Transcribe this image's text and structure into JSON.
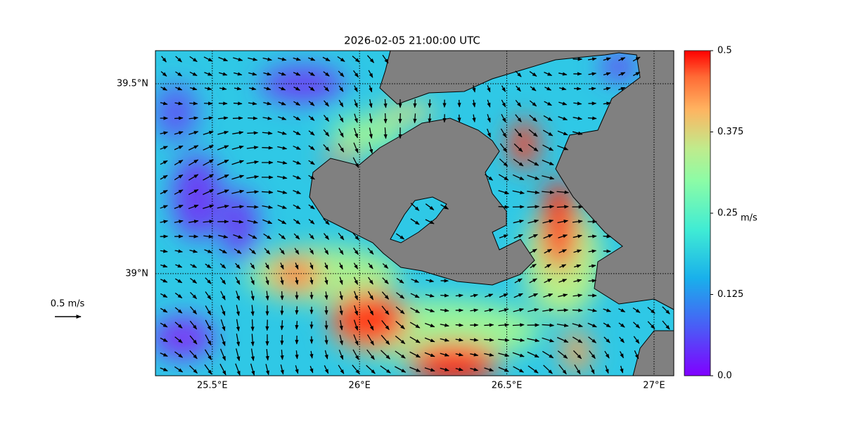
{
  "map": {
    "title": "2026-02-05 21:00:00 UTC",
    "xlim": [
      25.307,
      27.067
    ],
    "ylim": [
      38.731,
      39.587
    ],
    "lon_ticks": [
      {
        "value": 25.5,
        "label": "25.5°E"
      },
      {
        "value": 26,
        "label": "26°E"
      },
      {
        "value": 26.5,
        "label": "26.5°E"
      },
      {
        "value": 27,
        "label": "27°E"
      }
    ],
    "lat_ticks": [
      {
        "value": 39,
        "label": "39°N"
      },
      {
        "value": 39.5,
        "label": "39.5°N"
      }
    ],
    "colorbar": {
      "label": "m/s",
      "lim": [
        0,
        0.5
      ],
      "ticks": [
        {
          "value": 0,
          "label": "0.0"
        },
        0.125,
        0.25,
        0.375,
        0.5
      ]
    },
    "quiver_key": {
      "value": 0.5,
      "label": "0.5 m/s"
    }
  }
}
